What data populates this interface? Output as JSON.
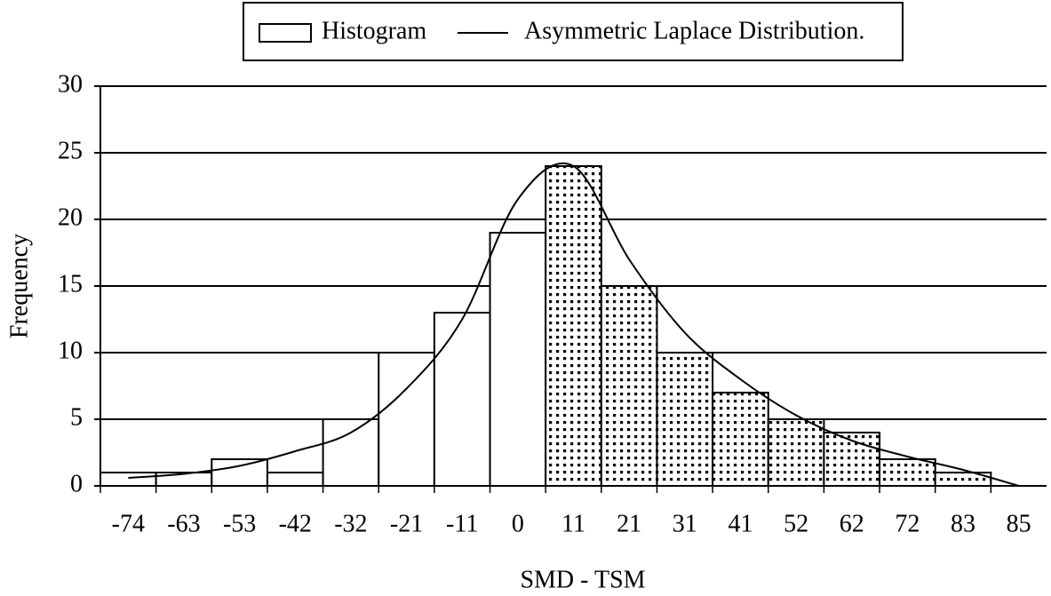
{
  "chart_data": {
    "type": "bar",
    "x_label": "SMD - TSM",
    "y_label": "Frequency",
    "categories": [
      "-74",
      "-63",
      "-53",
      "-42",
      "-32",
      "-21",
      "-11",
      "0",
      "11",
      "21",
      "31",
      "41",
      "52",
      "62",
      "72",
      "83",
      "85"
    ],
    "series": [
      {
        "name": "Histogram",
        "type": "bar",
        "color": "#ffffff",
        "patterns": [
          "none",
          "none",
          "none",
          "none",
          "none",
          "none",
          "none",
          "none",
          "dots",
          "dots",
          "dots",
          "dots",
          "dots",
          "dots",
          "dots",
          "dots",
          "dots"
        ],
        "values": [
          1,
          1,
          2,
          1,
          5,
          10,
          13,
          19,
          24,
          15,
          10,
          7,
          5,
          4,
          2,
          1,
          0
        ]
      },
      {
        "name": "Asymmetric Laplace Distribution.",
        "type": "line",
        "color": "#000000",
        "values": [
          0.6,
          0.9,
          1.5,
          2.6,
          4.0,
          7.3,
          12.5,
          21.5,
          24,
          17,
          11.5,
          8,
          5.3,
          3.4,
          2.2,
          1.2,
          0
        ]
      }
    ],
    "ylim": [
      0,
      30
    ],
    "yticks": [
      0,
      5,
      10,
      15,
      20,
      25,
      30
    ],
    "grid": true,
    "legend": "top"
  }
}
